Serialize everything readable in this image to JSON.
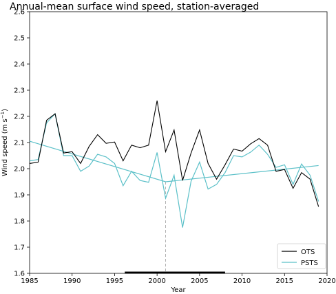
{
  "chart_data": {
    "type": "line",
    "title": "Annual-mean surface wind speed, station-averaged",
    "xlabel": "Year",
    "ylabel_main": "Wind speed (m s",
    "ylabel_sup": "−1",
    "ylabel_end": ")",
    "xlim": [
      1985,
      2020
    ],
    "ylim": [
      1.6,
      2.6
    ],
    "xticks": [
      1985,
      1990,
      1995,
      2000,
      2005,
      2010,
      2015,
      2020
    ],
    "yticks": [
      1.6,
      1.7,
      1.8,
      1.9,
      2.0,
      2.1,
      2.2,
      2.3,
      2.4,
      2.5,
      2.6
    ],
    "x": [
      1985,
      1986,
      1987,
      1988,
      1989,
      1990,
      1991,
      1992,
      1993,
      1994,
      1995,
      1996,
      1997,
      1998,
      1999,
      2000,
      2001,
      2002,
      2003,
      2004,
      2005,
      2006,
      2007,
      2008,
      2009,
      2010,
      2011,
      2012,
      2013,
      2014,
      2015,
      2016,
      2017,
      2018,
      2019
    ],
    "series": [
      {
        "name": "OTS",
        "color": "#000000",
        "values": [
          2.02,
          2.025,
          2.185,
          2.21,
          2.06,
          2.065,
          2.02,
          2.085,
          2.13,
          2.097,
          2.102,
          2.03,
          2.09,
          2.08,
          2.09,
          2.26,
          2.065,
          2.148,
          1.955,
          2.06,
          2.148,
          2.02,
          1.96,
          2.015,
          2.075,
          2.067,
          2.095,
          2.115,
          2.09,
          1.99,
          1.997,
          1.925,
          1.985,
          1.96,
          1.855
        ]
      },
      {
        "name": "PSTS",
        "color": "#5bc0c8",
        "values": [
          2.03,
          2.035,
          2.175,
          2.21,
          2.05,
          2.05,
          1.99,
          2.01,
          2.055,
          2.045,
          2.02,
          1.935,
          1.99,
          1.955,
          1.948,
          2.062,
          1.887,
          1.975,
          1.775,
          1.952,
          2.025,
          1.922,
          1.94,
          1.985,
          2.05,
          2.045,
          2.063,
          2.09,
          2.055,
          2.005,
          2.015,
          1.94,
          2.018,
          1.975,
          1.875
        ]
      }
    ],
    "trend": {
      "color": "#5bc0c8",
      "points": [
        [
          1985,
          2.105
        ],
        [
          2001,
          1.95
        ],
        [
          2019,
          2.012
        ]
      ]
    },
    "breakpoint_year": 2001,
    "period_bar": [
      1996.2,
      2008
    ],
    "legend_position": "lower-right",
    "grid": false
  }
}
